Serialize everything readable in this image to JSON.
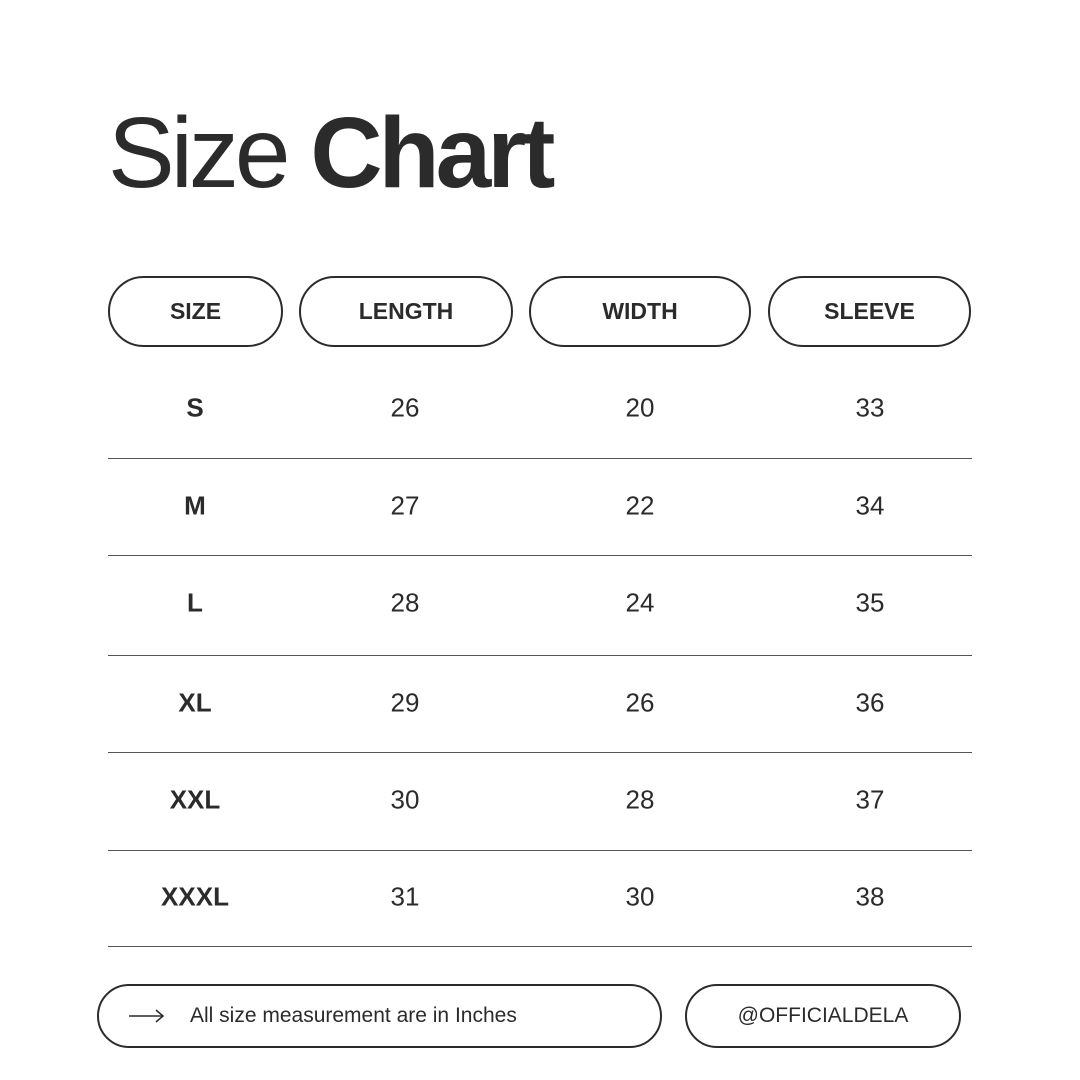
{
  "title": {
    "light": "Size",
    "bold": "Chart"
  },
  "table": {
    "headers": [
      "SIZE",
      "LENGTH",
      "WIDTH",
      "SLEEVE"
    ],
    "rows": [
      [
        "S",
        "26",
        "20",
        "33"
      ],
      [
        "M",
        "27",
        "22",
        "34"
      ],
      [
        "L",
        "28",
        "24",
        "35"
      ],
      [
        "XL",
        "29",
        "26",
        "36"
      ],
      [
        "XXL",
        "30",
        "28",
        "37"
      ],
      [
        "XXXL",
        "31",
        "30",
        "38"
      ]
    ]
  },
  "footer": {
    "note_icon": "arrow-right-icon",
    "note": "All size measurement are in Inches",
    "handle": "@OFFICIALDELA"
  },
  "colors": {
    "text": "#2b2b2b",
    "background": "#ffffff"
  }
}
